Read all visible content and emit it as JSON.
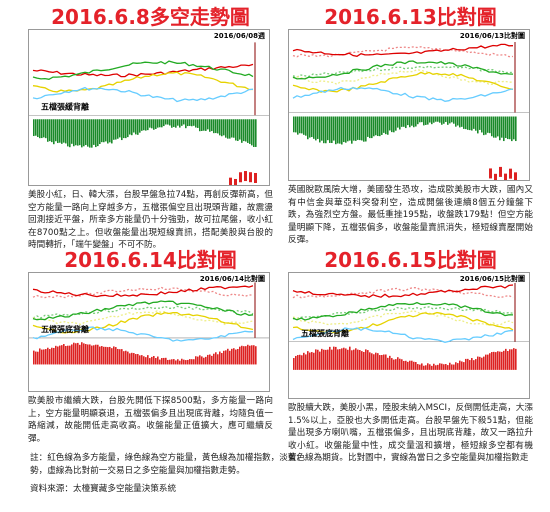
{
  "panels": [
    {
      "title": "2016.6.8多空走勢圖",
      "date_label": "2016/06/08週",
      "annotation": "五檔張緩背離",
      "text": "美股小紅，日、韓大漲，台股早盤急拉74點，再創反彈新高，但空方能量一路向上穿越多方，五檔張偏空且出現頭背離，故震盪回測接近平盤，所幸多方能量仍十分強勁，故可拉尾盤，收小紅在8700點之上。但收盤能量出現短線賣訊，搭配美股與台股的時間轉折，「端午變盤」不可不防。"
    },
    {
      "title": "2016.6.13比對圖",
      "date_label": "2016/06/13比對圖",
      "text": "英國脫歐風險大增，美國發生恐攻，造成歐美股市大跌，國內又有中信金與華亞科突發利空，造成開盤後連續8個五分鐘盤下跌，為強烈空方盤。最低重挫195點，收盤跌179點！但空方能量明顯下降，五檔張偏多，收盤能量賣訊消失，極短線賣壓開始反彈。"
    },
    {
      "title": "2016.6.14比對圖",
      "date_label": "2016/06/14比對圖",
      "annotation": "五檔張底背離",
      "text": "歐美股市繼續大跌，台股先開低下探8500點，多方能量一路向上，空方能量明顯衰退，五檔張偏多且出現底背離，均隨負值一路縮減，故能開低走高收高。收盤能量正值擴大，應可繼續反彈。"
    },
    {
      "title": "2016.6.15比對圖",
      "date_label": "2016/06/15比對圖",
      "annotation": "五檔張底背離",
      "text": "歐股續大跌，美股小黑，陸股未納入MSCI，反倒開低走高，大漲1.5%以上，亞股也大多開低走高。台股早盤先下殺51點，但能量出現多方喇叭嘴，五檔張偏多，且出現底背離，故又一路拉升收小紅。收盤能量中性，成交量溫和擴增，極短線多空都有機會。"
    }
  ],
  "note": "註：紅色線為多方能量，綠色線為空方能量，黃色線為加權指數，淡藍色線為期貨。比對圖中，實線為當日之多空能量與加權指數走勢，虛線為比對前一交易日之多空能量與加權指數走勢。",
  "source": "資料來源：太檯寶藏多空能量決策系統"
}
